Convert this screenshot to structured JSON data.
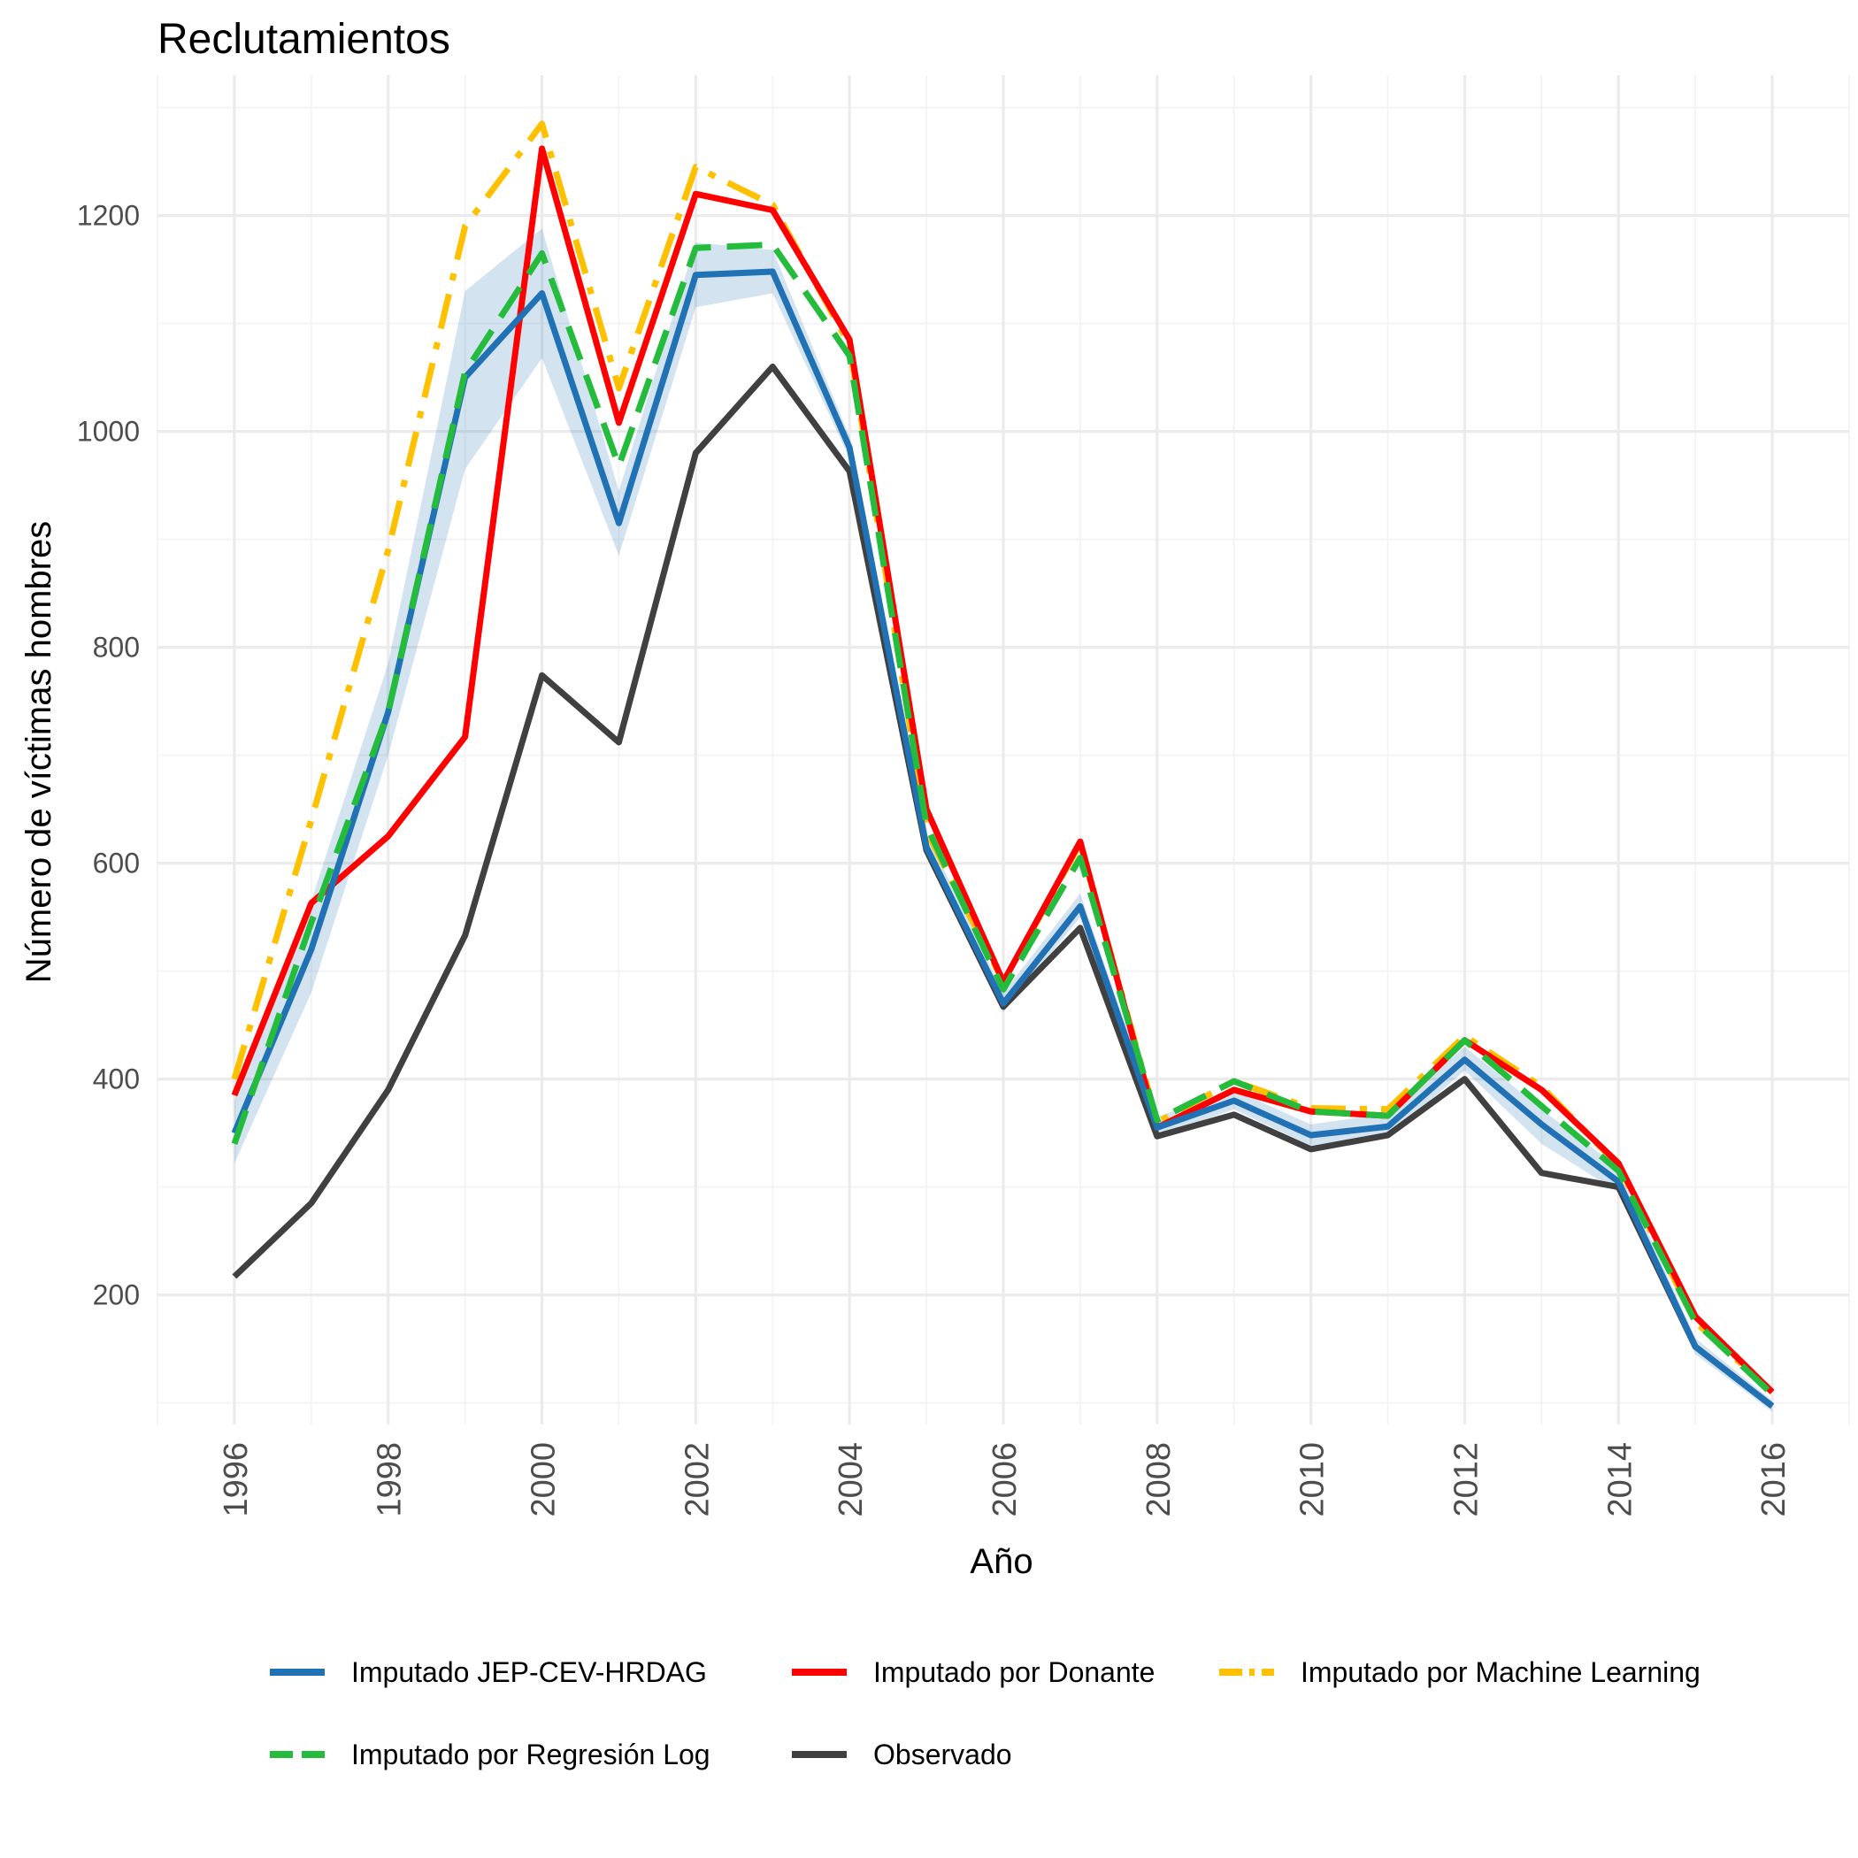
{
  "chart_data": {
    "type": "line",
    "title": "Reclutamientos",
    "xlabel": "Año",
    "ylabel": "Número de víctimas hombres",
    "x": [
      1996,
      1997,
      1998,
      1999,
      2000,
      2001,
      2002,
      2003,
      2004,
      2005,
      2006,
      2007,
      2008,
      2009,
      2010,
      2011,
      2012,
      2013,
      2014,
      2015,
      2016
    ],
    "x_ticks": [
      "1996",
      "1998",
      "2000",
      "2002",
      "2004",
      "2006",
      "2008",
      "2010",
      "2012",
      "2014",
      "2016"
    ],
    "y_ticks": [
      "200",
      "400",
      "600",
      "800",
      "1000",
      "1200"
    ],
    "xlim": [
      1995,
      2017
    ],
    "ylim": [
      80,
      1330
    ],
    "grid": true,
    "legend_position": "bottom",
    "series": [
      {
        "name": "Imputado JEP-CEV-HRDAG",
        "color": "#2171b5",
        "dash": "solid",
        "values": [
          350,
          520,
          740,
          1050,
          1128,
          915,
          1145,
          1148,
          985,
          615,
          470,
          560,
          355,
          380,
          348,
          356,
          418,
          358,
          305,
          152,
          97
        ],
        "band_lower": [
          322,
          480,
          700,
          965,
          1068,
          885,
          1115,
          1128,
          975,
          605,
          462,
          550,
          347,
          372,
          338,
          346,
          408,
          340,
          295,
          145,
          92
        ],
        "band_upper": [
          380,
          565,
          785,
          1130,
          1188,
          945,
          1175,
          1168,
          995,
          628,
          480,
          572,
          365,
          390,
          358,
          368,
          430,
          372,
          318,
          160,
          102
        ]
      },
      {
        "name": "Imputado por Donante",
        "color": "#ff0000",
        "dash": "solid",
        "values": [
          385,
          563,
          625,
          717,
          1262,
          1008,
          1220,
          1205,
          1085,
          650,
          490,
          620,
          355,
          390,
          370,
          366,
          436,
          390,
          322,
          180,
          110
        ]
      },
      {
        "name": "Imputado por Machine Learning",
        "color": "#ffc000",
        "dash": "dashdot",
        "values": [
          400,
          640,
          890,
          1190,
          1285,
          1040,
          1245,
          1210,
          1080,
          630,
          490,
          618,
          360,
          398,
          373,
          372,
          440,
          393,
          320,
          175,
          110
        ]
      },
      {
        "name": "Imputado por Regresión Log",
        "color": "#25bb3d",
        "dash": "dashed",
        "values": [
          340,
          545,
          740,
          1055,
          1165,
          968,
          1170,
          1173,
          1070,
          635,
          483,
          605,
          362,
          398,
          370,
          366,
          436,
          375,
          315,
          175,
          108
        ]
      },
      {
        "name": "Observado",
        "color": "#404040",
        "dash": "solid",
        "values": [
          217,
          285,
          390,
          533,
          774,
          712,
          980,
          1060,
          963,
          612,
          467,
          540,
          347,
          367,
          335,
          348,
          400,
          313,
          300,
          152,
          97
        ]
      }
    ]
  }
}
